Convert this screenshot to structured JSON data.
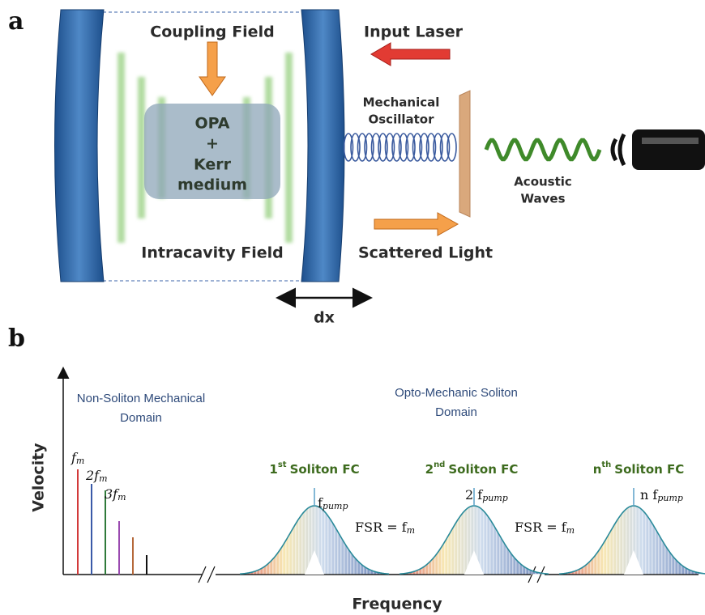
{
  "panel_a": {
    "label": "a",
    "coupling_field": "Coupling Field",
    "medium": [
      "OPA",
      "+",
      "Kerr",
      "medium"
    ],
    "intracavity_field": "Intracavity Field",
    "input_laser": "Input Laser",
    "mechanical_oscillator": [
      "Mechanical",
      "Oscillator"
    ],
    "acoustic_waves": [
      "Acoustic",
      "Waves"
    ],
    "scattered_light": "Scattered Light",
    "displacement": "dx"
  },
  "panel_b": {
    "label": "b",
    "y_axis": "Velocity",
    "x_axis": "Frequency",
    "mechanical_domain": [
      "Non-Soliton Mechanical",
      "Domain"
    ],
    "soliton_domain": [
      "Opto-Mechanic Soliton",
      "Domain"
    ],
    "harmonics": [
      {
        "text": "f",
        "sub": "m"
      },
      {
        "text": "2f",
        "sub": "m"
      },
      {
        "text": "3f",
        "sub": "m"
      }
    ],
    "combs": [
      {
        "title": {
          "ordinal": "1",
          "suffix": "st",
          "rest": "Soliton  FC"
        },
        "pump": {
          "text": "f",
          "sub": "pump"
        }
      },
      {
        "title": {
          "ordinal": "2",
          "suffix": "nd",
          "rest": "Soliton  FC"
        },
        "pump": {
          "text": "2 f",
          "sub": "pump"
        }
      },
      {
        "title": {
          "ordinal": "n",
          "suffix": "th",
          "rest": "Soliton  FC"
        },
        "pump": {
          "text": "n f",
          "sub": "pump"
        }
      }
    ],
    "fsr": [
      {
        "text": "FSR = f",
        "sub": "m"
      },
      {
        "text": "FSR = f",
        "sub": "m"
      }
    ]
  }
}
